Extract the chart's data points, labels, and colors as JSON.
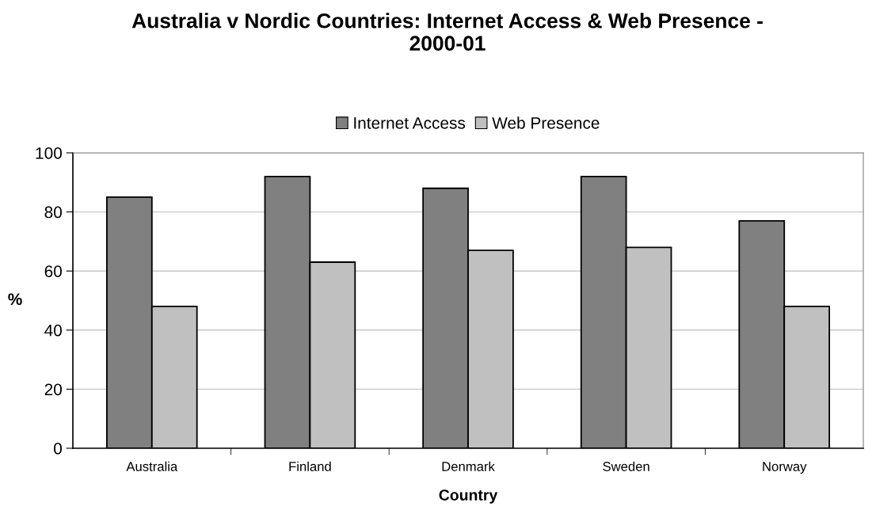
{
  "chart_data": {
    "type": "bar",
    "title": "Australia v Nordic Countries: Internet Access & Web Presence -\n2000-01",
    "xlabel": "Country",
    "ylabel": "%",
    "categories": [
      "Australia",
      "Finland",
      "Denmark",
      "Sweden",
      "Norway"
    ],
    "series": [
      {
        "name": "Internet Access",
        "color": "#808080",
        "values": [
          85,
          92,
          88,
          92,
          77
        ]
      },
      {
        "name": "Web Presence",
        "color": "#c0c0c0",
        "values": [
          48,
          63,
          67,
          68,
          48
        ]
      }
    ],
    "ylim": [
      0,
      100
    ],
    "yticks": [
      0,
      20,
      40,
      60,
      80,
      100
    ],
    "grid": "y",
    "legend": "top"
  }
}
